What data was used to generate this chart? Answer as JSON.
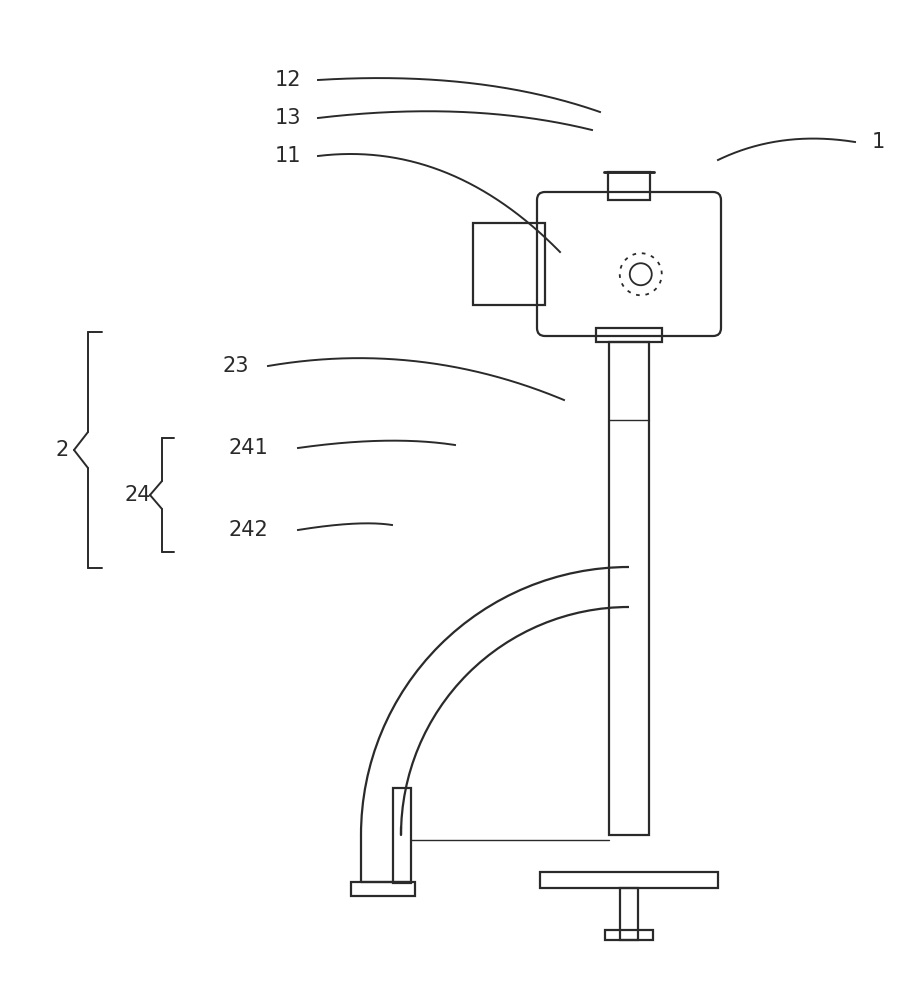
{
  "bg_color": "#ffffff",
  "line_color": "#2a2a2a",
  "lw": 1.6,
  "fig_width": 9.18,
  "fig_height": 10.0
}
